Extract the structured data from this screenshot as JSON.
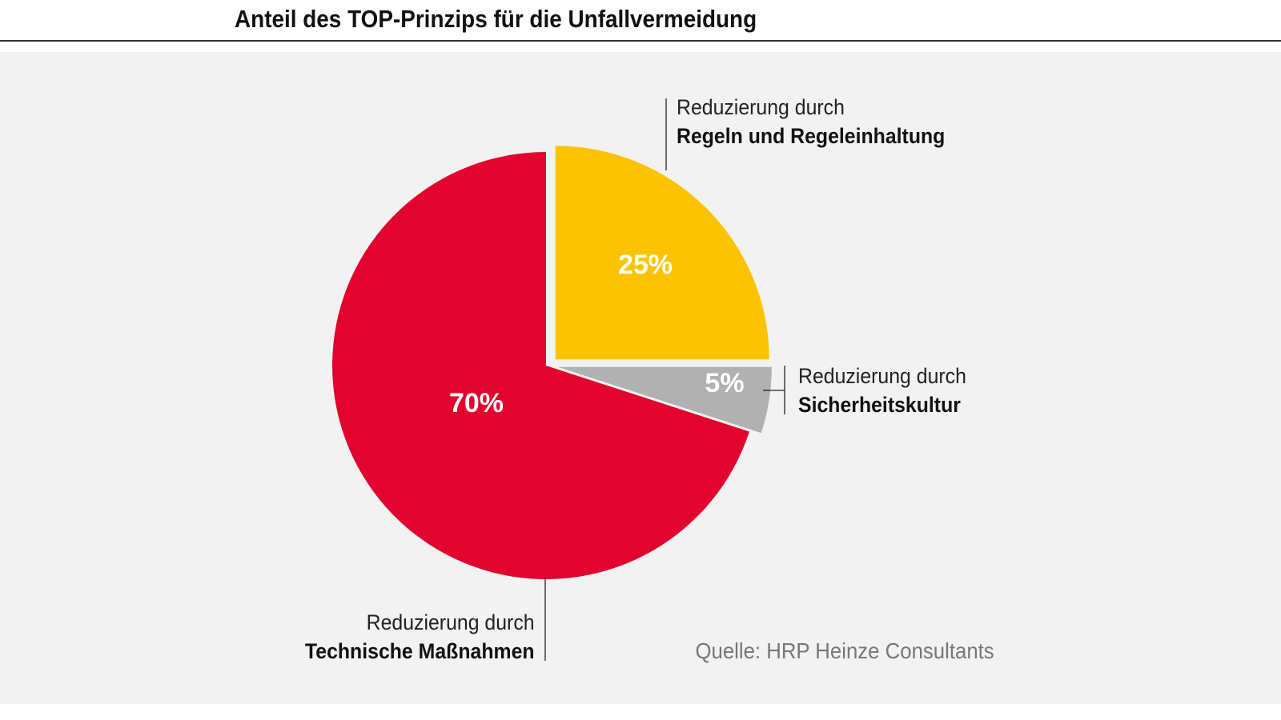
{
  "chart_data": {
    "type": "pie",
    "title": "Anteil des TOP-Prinzips für die Unfallvermeidung",
    "slices": [
      {
        "label_prefix": "Reduzierung durch",
        "label": "Regeln und Regeleinhaltung",
        "value": 25,
        "value_label": "25%",
        "color": "#fcc400",
        "exploded": true
      },
      {
        "label_prefix": "Reduzierung durch",
        "label": "Sicherheitskultur",
        "value": 5,
        "value_label": "5%",
        "color": "#b1b1b1",
        "exploded": true
      },
      {
        "label_prefix": "Reduzierung durch",
        "label": "Technische Maßnahmen",
        "value": 70,
        "value_label": "70%",
        "color": "#e2032f",
        "exploded": false
      }
    ],
    "source": "Quelle: HRP Heinze Consultants"
  }
}
